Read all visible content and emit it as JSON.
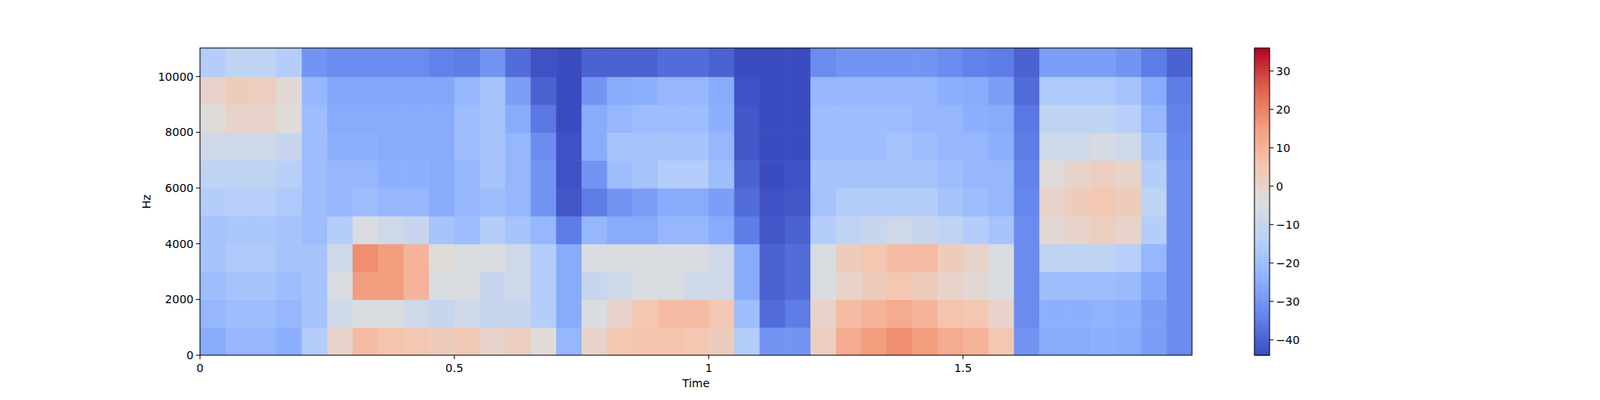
{
  "chart_data": {
    "type": "heatmap",
    "x_label": "Time",
    "y_label": "Hz",
    "xlim": [
      0,
      1.95
    ],
    "ylim": [
      0,
      11025
    ],
    "xticks": [
      0,
      0.5,
      1,
      1.5
    ],
    "yticks": [
      0,
      2000,
      4000,
      6000,
      8000,
      10000
    ],
    "x_bins": [
      0,
      0.05,
      0.1,
      0.15,
      0.2,
      0.25,
      0.3,
      0.35,
      0.4,
      0.45,
      0.5,
      0.55,
      0.6,
      0.65,
      0.7,
      0.75,
      0.8,
      0.85,
      0.9,
      0.95,
      1,
      1.05,
      1.1,
      1.15,
      1.2,
      1.25,
      1.3,
      1.35,
      1.4,
      1.45,
      1.5,
      1.55,
      1.6,
      1.65,
      1.7,
      1.75,
      1.8,
      1.85,
      1.9,
      1.95
    ],
    "y_bins": [
      0,
      1000,
      2000,
      3000,
      4000,
      5000,
      6000,
      7000,
      8000,
      9000,
      10000,
      11025
    ],
    "values": [
      [
        -25,
        -22,
        -22,
        -24,
        -15,
        0,
        8,
        6,
        5,
        3,
        4,
        0,
        2,
        -3,
        -22,
        0,
        5,
        6,
        6,
        5,
        3,
        -15,
        -30,
        -30,
        2,
        12,
        15,
        18,
        15,
        12,
        10,
        5,
        -30,
        -25,
        -25,
        -24,
        -25,
        -28,
        -32
      ],
      [
        -22,
        -20,
        -20,
        -22,
        -18,
        -8,
        -5,
        -5,
        -8,
        -10,
        -8,
        -10,
        -10,
        -15,
        -25,
        -5,
        0,
        5,
        8,
        8,
        5,
        -20,
        -38,
        -35,
        0,
        8,
        10,
        12,
        10,
        6,
        5,
        0,
        -32,
        -24,
        -24,
        -23,
        -24,
        -28,
        -32
      ],
      [
        -20,
        -18,
        -18,
        -20,
        -18,
        -5,
        15,
        15,
        10,
        -5,
        -5,
        -10,
        -8,
        -15,
        -25,
        -10,
        -8,
        -5,
        -5,
        -8,
        -8,
        -25,
        -40,
        -38,
        -5,
        0,
        3,
        5,
        3,
        0,
        -2,
        -5,
        -32,
        -20,
        -20,
        -20,
        -21,
        -26,
        -32
      ],
      [
        -18,
        -16,
        -16,
        -18,
        -18,
        -8,
        18,
        15,
        10,
        -3,
        -5,
        -5,
        -8,
        -15,
        -25,
        -5,
        -5,
        -5,
        -5,
        -5,
        -8,
        -25,
        -40,
        -38,
        -5,
        3,
        5,
        8,
        8,
        3,
        0,
        -5,
        -32,
        -12,
        -12,
        -12,
        -14,
        -22,
        -32
      ],
      [
        -18,
        -17,
        -17,
        -18,
        -20,
        -15,
        -5,
        -8,
        -10,
        -18,
        -20,
        -15,
        -18,
        -22,
        -35,
        -22,
        -25,
        -25,
        -22,
        -22,
        -25,
        -35,
        -42,
        -40,
        -15,
        -12,
        -10,
        -8,
        -10,
        -12,
        -15,
        -18,
        -32,
        -2,
        0,
        2,
        0,
        -15,
        -32
      ],
      [
        -15,
        -14,
        -14,
        -16,
        -20,
        -22,
        -20,
        -22,
        -22,
        -25,
        -22,
        -20,
        -22,
        -30,
        -42,
        -35,
        -30,
        -28,
        -25,
        -25,
        -28,
        -38,
        -43,
        -42,
        -18,
        -15,
        -15,
        -15,
        -15,
        -18,
        -20,
        -22,
        -33,
        0,
        3,
        5,
        3,
        -12,
        -32
      ],
      [
        -12,
        -12,
        -12,
        -14,
        -20,
        -22,
        -22,
        -24,
        -24,
        -25,
        -22,
        -18,
        -22,
        -30,
        -43,
        -30,
        -20,
        -18,
        -15,
        -15,
        -20,
        -40,
        -44,
        -43,
        -18,
        -18,
        -18,
        -18,
        -18,
        -20,
        -22,
        -22,
        -34,
        -3,
        0,
        2,
        0,
        -15,
        -32
      ],
      [
        -8,
        -8,
        -8,
        -10,
        -20,
        -24,
        -24,
        -25,
        -25,
        -25,
        -20,
        -18,
        -22,
        -32,
        -43,
        -25,
        -18,
        -18,
        -18,
        -18,
        -22,
        -42,
        -44,
        -44,
        -20,
        -20,
        -20,
        -18,
        -20,
        -22,
        -22,
        -24,
        -35,
        -8,
        -8,
        -6,
        -8,
        -18,
        -33
      ],
      [
        -3,
        0,
        0,
        -3,
        -20,
        -25,
        -25,
        -25,
        -25,
        -25,
        -20,
        -18,
        -25,
        -36,
        -44,
        -25,
        -22,
        -20,
        -20,
        -20,
        -24,
        -42,
        -44,
        -44,
        -20,
        -20,
        -20,
        -20,
        -22,
        -22,
        -24,
        -25,
        -36,
        -12,
        -12,
        -12,
        -14,
        -22,
        -34
      ],
      [
        0,
        3,
        2,
        -2,
        -22,
        -26,
        -26,
        -26,
        -26,
        -26,
        -22,
        -18,
        -28,
        -40,
        -44,
        -30,
        -25,
        -24,
        -22,
        -22,
        -25,
        -43,
        -44,
        -44,
        -22,
        -22,
        -22,
        -22,
        -22,
        -24,
        -25,
        -28,
        -38,
        -16,
        -16,
        -16,
        -18,
        -25,
        -35
      ],
      [
        -15,
        -12,
        -12,
        -15,
        -30,
        -32,
        -32,
        -32,
        -32,
        -34,
        -35,
        -30,
        -38,
        -43,
        -44,
        -40,
        -40,
        -40,
        -38,
        -38,
        -40,
        -44,
        -44,
        -44,
        -32,
        -30,
        -30,
        -30,
        -30,
        -32,
        -34,
        -35,
        -40,
        -28,
        -28,
        -28,
        -30,
        -35,
        -40
      ]
    ],
    "colorbar": {
      "lim": [
        -44,
        36
      ],
      "ticks": [
        {
          "value": -40,
          "label": "−40"
        },
        {
          "value": -30,
          "label": "−30"
        },
        {
          "value": -20,
          "label": "−20"
        },
        {
          "value": -10,
          "label": "−10"
        },
        0,
        10,
        20,
        30
      ]
    }
  }
}
